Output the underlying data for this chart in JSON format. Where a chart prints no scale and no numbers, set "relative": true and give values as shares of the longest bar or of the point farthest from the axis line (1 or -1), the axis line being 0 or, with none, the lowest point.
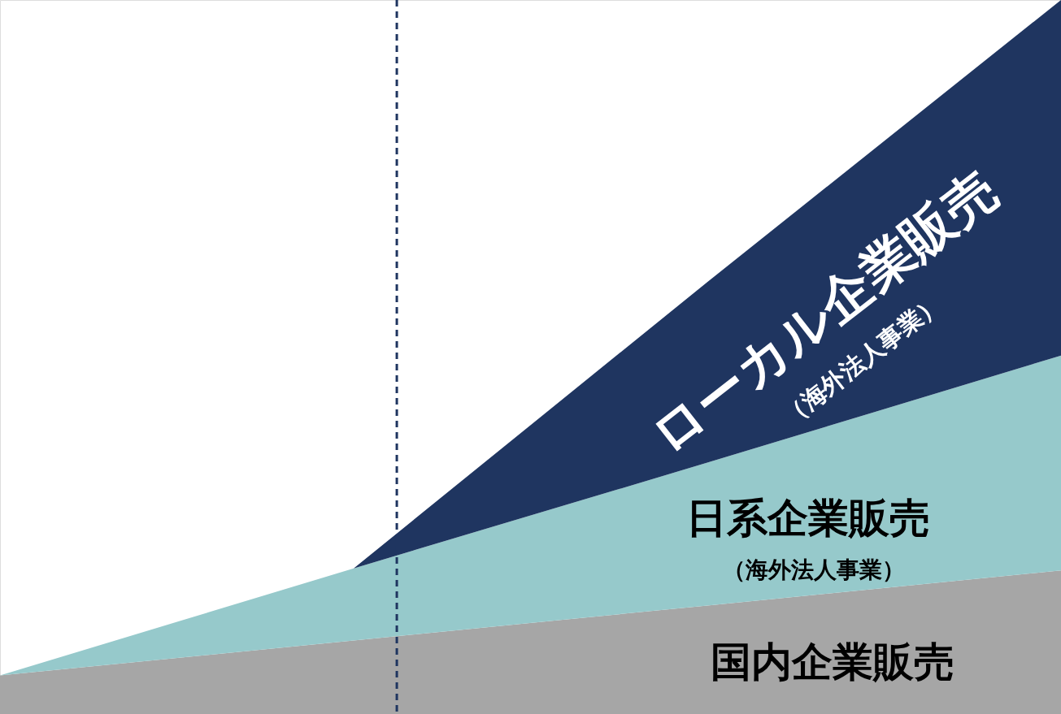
{
  "chart_data": {
    "type": "area",
    "stacked": true,
    "relative": true,
    "categories": [
      null,
      null,
      null,
      null
    ],
    "series": [
      {
        "name": "国内企業販売",
        "color": "#a6a6a6",
        "values": [
          0.054,
          0.103,
          0.152,
          0.201
        ]
      },
      {
        "name": "日系企業販売（海外法人事業）",
        "color": "#96c9cb",
        "values": [
          0,
          0.101,
          0.2,
          0.301
        ]
      },
      {
        "name": "ローカル企業販売（海外法人事業）",
        "color": "#1f3560",
        "values": [
          0,
          0,
          0.253,
          0.498
        ]
      }
    ]
  }
}
